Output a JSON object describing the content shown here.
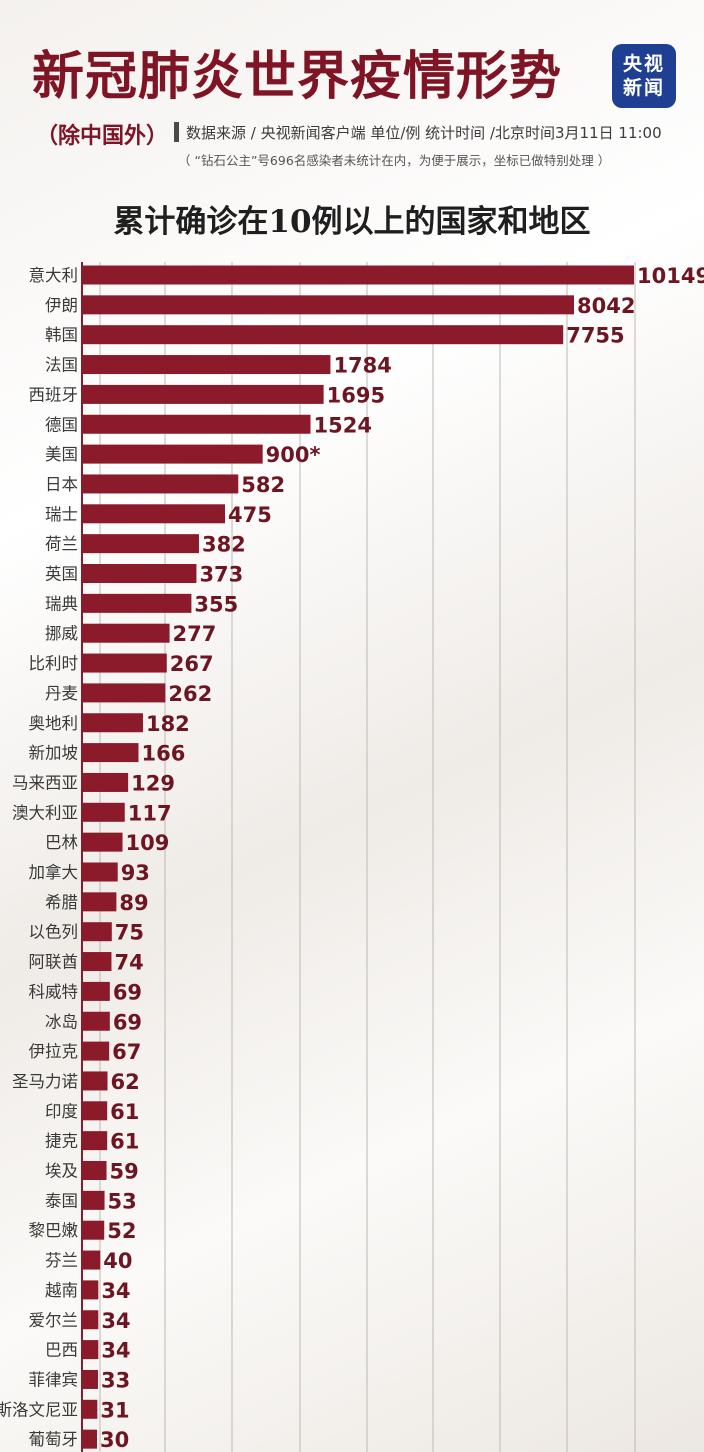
{
  "header": {
    "title": "新冠肺炎世界疫情形势",
    "logo_line1": "央视",
    "logo_line2": "新闻",
    "subtitle": "（除中国外）",
    "source": "数据来源 / 央视新闻客户端  单位/例    统计时间 /北京时间3月11日 11:00",
    "note": "（ “钻石公主”号696名感染者未统计在内，为便于展示，坐标已做特别处理 ）"
  },
  "colors": {
    "bar": "#8b1a2b",
    "title": "#7e1424",
    "logo_bg": "#1f3f93"
  },
  "chart_data": {
    "type": "bar",
    "orientation": "horizontal",
    "title": "累计确诊在10例以上的国家和地区",
    "categories": [
      "意大利",
      "伊朗",
      "韩国",
      "法国",
      "西班牙",
      "德国",
      "美国",
      "日本",
      "瑞士",
      "荷兰",
      "英国",
      "瑞典",
      "挪威",
      "比利时",
      "丹麦",
      "奥地利",
      "新加坡",
      "马来西亚",
      "澳大利亚",
      "巴林",
      "加拿大",
      "希腊",
      "以色列",
      "阿联酋",
      "科威特",
      "冰岛",
      "伊拉克",
      "圣马力诺",
      "印度",
      "捷克",
      "埃及",
      "泰国",
      "黎巴嫩",
      "芬兰",
      "越南",
      "爱尔兰",
      "巴西",
      "菲律宾",
      "斯洛文尼亚",
      "葡萄牙"
    ],
    "values": [
      10149,
      8042,
      7755,
      1784,
      1695,
      1524,
      900,
      582,
      475,
      382,
      373,
      355,
      277,
      267,
      262,
      182,
      166,
      129,
      117,
      109,
      93,
      89,
      75,
      74,
      69,
      69,
      67,
      62,
      61,
      61,
      59,
      53,
      52,
      40,
      34,
      34,
      34,
      33,
      31,
      30
    ],
    "labels": [
      "10149",
      "8042",
      "7755",
      "1784",
      "1695",
      "1524",
      "900*",
      "582",
      "475",
      "382",
      "373",
      "355",
      "277",
      "267",
      "262",
      "182",
      "166",
      "129",
      "117",
      "109",
      "93",
      "89",
      "75",
      "74",
      "69",
      "69",
      "67",
      "62",
      "61",
      "61",
      "59",
      "53",
      "52",
      "40",
      "34",
      "34",
      "34",
      "33",
      "31",
      "30"
    ],
    "scale": "特别处理",
    "grid": true
  }
}
